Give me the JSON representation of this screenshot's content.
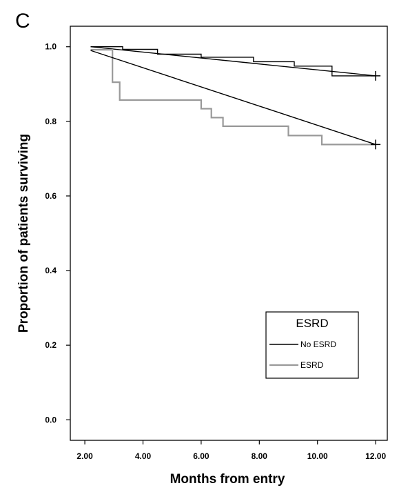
{
  "panel_label": "C",
  "chart_data": {
    "type": "line",
    "title": "",
    "xlabel": "Months from entry",
    "ylabel": "Proportion of patients surviving",
    "xlim": [
      1.5,
      12.4
    ],
    "ylim": [
      -0.055,
      1.055
    ],
    "x_ticks": [
      "2.00",
      "4.00",
      "6.00",
      "8.00",
      "10.00",
      "12.00"
    ],
    "x_tick_values": [
      2,
      4,
      6,
      8,
      10,
      12
    ],
    "y_ticks": [
      "0.0",
      "0.2",
      "0.4",
      "0.6",
      "0.8",
      "1.0"
    ],
    "y_tick_values": [
      0,
      0.2,
      0.4,
      0.6,
      0.8,
      1.0
    ],
    "legend": {
      "title": "ESRD",
      "placement": "lower-right",
      "entries": [
        "No ESRD",
        "ESRD"
      ]
    },
    "series": [
      {
        "name": "No ESRD",
        "color": "#000000",
        "steps": [
          [
            2.2,
            1.0
          ],
          [
            3.3,
            1.0
          ],
          [
            3.3,
            0.993
          ],
          [
            4.5,
            0.993
          ],
          [
            4.5,
            0.98
          ],
          [
            6.0,
            0.98
          ],
          [
            6.0,
            0.972
          ],
          [
            7.8,
            0.972
          ],
          [
            7.8,
            0.96
          ],
          [
            9.2,
            0.96
          ],
          [
            9.2,
            0.948
          ],
          [
            10.5,
            0.948
          ],
          [
            10.5,
            0.922
          ],
          [
            12.0,
            0.922
          ]
        ],
        "trend": [
          [
            2.2,
            1.0
          ],
          [
            12.0,
            0.922
          ]
        ],
        "censor": [
          [
            12.0,
            0.922
          ]
        ]
      },
      {
        "name": "ESRD",
        "color": "#999999",
        "steps": [
          [
            2.2,
            0.992
          ],
          [
            2.95,
            0.992
          ],
          [
            2.95,
            0.905
          ],
          [
            3.2,
            0.905
          ],
          [
            3.2,
            0.857
          ],
          [
            6.0,
            0.857
          ],
          [
            6.0,
            0.834
          ],
          [
            6.35,
            0.834
          ],
          [
            6.35,
            0.81
          ],
          [
            6.75,
            0.81
          ],
          [
            6.75,
            0.787
          ],
          [
            9.0,
            0.787
          ],
          [
            9.0,
            0.762
          ],
          [
            10.15,
            0.762
          ],
          [
            10.15,
            0.738
          ],
          [
            12.0,
            0.738
          ]
        ],
        "trend": [
          [
            2.2,
            0.99
          ],
          [
            12.0,
            0.738
          ]
        ],
        "censor": [
          [
            12.0,
            0.738
          ]
        ]
      }
    ]
  }
}
